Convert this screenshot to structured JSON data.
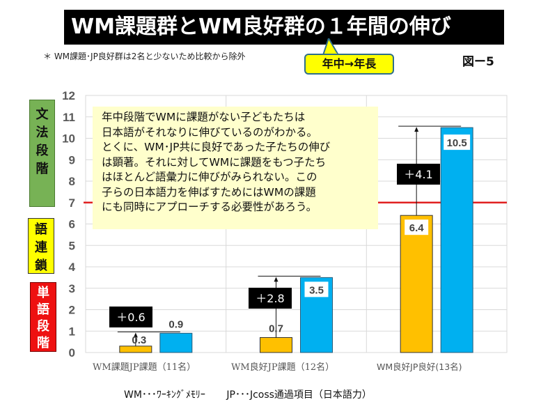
{
  "title": "WM課題群とWM良好群の１年間の伸び",
  "note": "＊ WM課題･JP良好群は2名と少ないため比較から除外",
  "callout": "年中→年長",
  "figure_label": "図ー5",
  "stages": {
    "grammar": [
      "文",
      "法",
      "段",
      "階"
    ],
    "chain": [
      "語",
      "連",
      "鎖"
    ],
    "word": [
      "単",
      "語",
      "段",
      "階"
    ]
  },
  "textbox_lines": [
    "年中段階でWMに課題がない子どもたちは",
    "日本語がそれなりに伸びているのがわかる。",
    "とくに、WM･JP共に良好であった子たちの伸び",
    "は顕著。それに対してWMに課題をもつ子たち",
    "はほとんど語彙力に伸びがみられない。この",
    "子らの日本語力を伸ばすためにはWMの課題",
    "にも同時にアプローチする必要性があろう。"
  ],
  "footnote": {
    "wm": "WM･･･ﾜｰｷﾝｸﾞﾒﾓﾘｰ",
    "jp": "JP･･･Jcoss通過項目（日本語力）"
  },
  "colors": {
    "year_middle": "#ffc000",
    "year_senior": "#00b0f0",
    "threshold": "#e02020",
    "gridline": "#d9d9d9"
  },
  "chart_data": {
    "type": "bar",
    "title": "WM課題群とWM良好群の１年間の伸び",
    "categories": [
      "WM課題JP課題（11名）",
      "WM良好JP課題（12名）",
      "WM良好JP良好(13名)"
    ],
    "series": [
      {
        "name": "年中",
        "values": [
          0.3,
          0.7,
          6.4
        ],
        "labels": [
          "0.3",
          "0.7",
          "6.4"
        ]
      },
      {
        "name": "年長",
        "values": [
          0.9,
          3.5,
          10.5
        ],
        "labels": [
          "0.9",
          "3.5",
          "10.5"
        ]
      }
    ],
    "gains": [
      "＋0.6",
      "＋2.8",
      "＋4.1"
    ],
    "ylim": [
      0,
      12
    ],
    "yticks": [
      "0",
      "1",
      "2",
      "3",
      "4",
      "5",
      "6",
      "7",
      "8",
      "9",
      "10",
      "11",
      "12"
    ],
    "threshold": 7,
    "grid": true,
    "xlabel": "",
    "ylabel": ""
  }
}
